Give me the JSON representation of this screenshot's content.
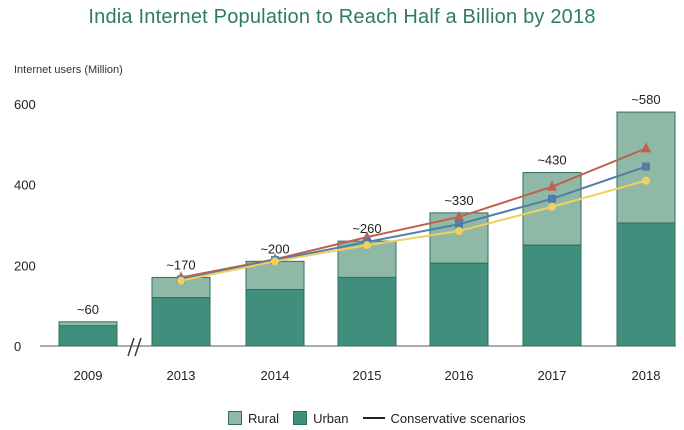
{
  "colors": {
    "rural": "#8fb8a6",
    "urban": "#3f8f7c",
    "bar_edge": "#2f6f5e",
    "series_red": "#c0614f",
    "series_blue": "#4f7fa8",
    "series_yellow": "#f0d060"
  },
  "chart_data": {
    "type": "bar",
    "title": "India Internet Population to Reach Half a Billion by 2018",
    "ylabel": "Internet users (Million)",
    "ylim": [
      0,
      600
    ],
    "yticks": [
      0,
      200,
      400,
      600
    ],
    "categories": [
      "2009",
      "2013",
      "2014",
      "2015",
      "2016",
      "2017",
      "2018"
    ],
    "totals": [
      60,
      170,
      200,
      260,
      330,
      430,
      580
    ],
    "total_labels": [
      "~60",
      "~170",
      "~200",
      "~260",
      "~330",
      "~430",
      "~580"
    ],
    "series": [
      {
        "name": "Urban",
        "values": [
          50,
          120,
          140,
          170,
          205,
          250,
          305
        ]
      },
      {
        "name": "Rural",
        "values": [
          10,
          50,
          70,
          90,
          125,
          180,
          275
        ]
      }
    ],
    "line_categories": [
      "2013",
      "2014",
      "2015",
      "2016",
      "2017",
      "2018"
    ],
    "line_series": [
      {
        "color_key": "series_red",
        "marker": "triangle",
        "values": [
          170,
          215,
          270,
          320,
          395,
          490
        ]
      },
      {
        "color_key": "series_blue",
        "marker": "square",
        "values": [
          165,
          213,
          258,
          302,
          365,
          445
        ]
      },
      {
        "color_key": "series_yellow",
        "marker": "circle",
        "values": [
          162,
          210,
          250,
          285,
          345,
          410
        ]
      }
    ],
    "axis_break": true,
    "legend": {
      "position": "bottom",
      "items": [
        "Rural",
        "Urban",
        "Conservative scenarios"
      ]
    }
  }
}
